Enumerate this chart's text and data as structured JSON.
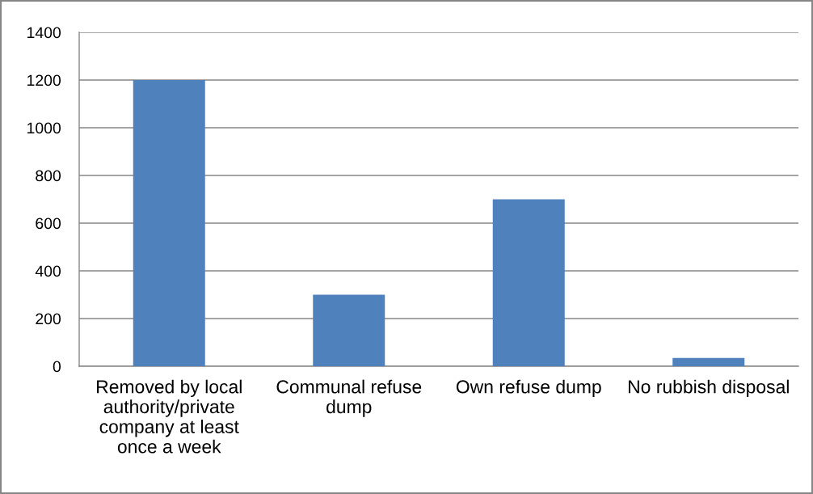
{
  "chart_data": {
    "type": "bar",
    "categories": [
      "Removed by local\nauthority/private\ncompany at least\nonce a week",
      "Communal refuse\ndump",
      "Own refuse dump",
      "No rubbish disposal"
    ],
    "values": [
      1200,
      300,
      700,
      35
    ],
    "color": "#4f81bd",
    "ylim": [
      0,
      1400
    ],
    "yticks": [
      0,
      200,
      400,
      600,
      800,
      1000,
      1200,
      1400
    ],
    "grid": "y",
    "legend": false
  }
}
